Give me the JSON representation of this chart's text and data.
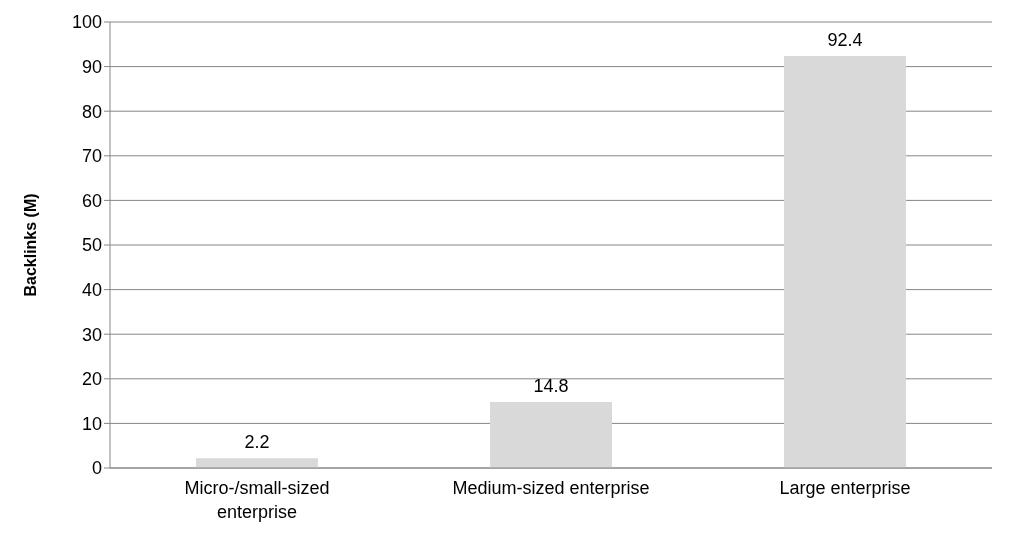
{
  "chart_data": {
    "type": "bar",
    "ylabel": "Backlinks (M)",
    "categories": [
      "Micro-/small-sized enterprise",
      "Medium-sized enterprise",
      "Large enterprise"
    ],
    "values": [
      2.2,
      14.8,
      92.4
    ],
    "color": "#d9d9d9",
    "ylim": [
      0,
      100
    ],
    "yticks": [
      0,
      10,
      20,
      30,
      40,
      50,
      60,
      70,
      80,
      90,
      100
    ],
    "grid": "y",
    "data_labels": true
  }
}
